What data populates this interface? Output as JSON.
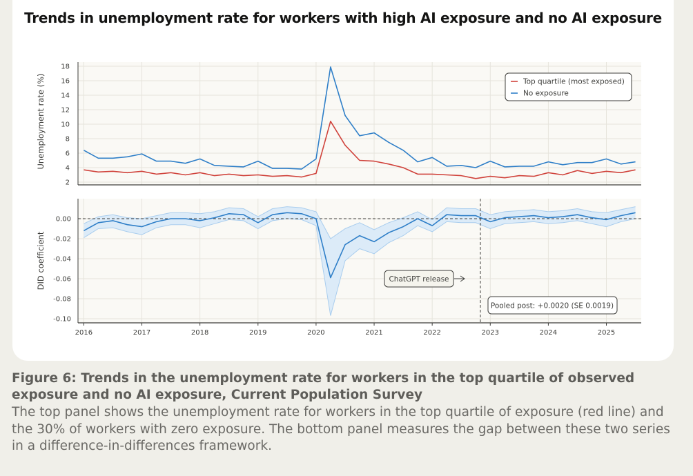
{
  "chart_data": [
    {
      "type": "line",
      "title": "Trends in unemployment rate for workers with high AI exposure and no AI exposure",
      "ylabel": "Unemployment rate (%)",
      "ylim": [
        2,
        18
      ],
      "yticks": [
        2,
        4,
        6,
        8,
        10,
        12,
        14,
        16,
        18
      ],
      "xlim": [
        2015.9,
        2025.6
      ],
      "grid": true,
      "legend": "top-right",
      "series": [
        {
          "name": "Top quartile (most exposed)",
          "color": "#d0433c",
          "x": [
            2016.0,
            2016.25,
            2016.5,
            2016.75,
            2017.0,
            2017.25,
            2017.5,
            2017.75,
            2018.0,
            2018.25,
            2018.5,
            2018.75,
            2019.0,
            2019.25,
            2019.5,
            2019.75,
            2020.0,
            2020.25,
            2020.5,
            2020.75,
            2021.0,
            2021.25,
            2021.5,
            2021.75,
            2022.0,
            2022.25,
            2022.5,
            2022.75,
            2023.0,
            2023.25,
            2023.5,
            2023.75,
            2024.0,
            2024.25,
            2024.5,
            2024.75,
            2025.0,
            2025.25,
            2025.5
          ],
          "y": [
            3.7,
            3.4,
            3.5,
            3.3,
            3.5,
            3.1,
            3.3,
            3.0,
            3.3,
            2.9,
            3.1,
            2.9,
            3.0,
            2.8,
            2.9,
            2.7,
            3.2,
            10.4,
            7.1,
            5.0,
            4.9,
            4.5,
            4.0,
            3.1,
            3.1,
            3.0,
            2.9,
            2.5,
            2.8,
            2.6,
            2.9,
            2.8,
            3.3,
            3.0,
            3.6,
            3.2,
            3.5,
            3.3,
            3.7
          ]
        },
        {
          "name": "No exposure",
          "color": "#2f7fc8",
          "x": [
            2016.0,
            2016.25,
            2016.5,
            2016.75,
            2017.0,
            2017.25,
            2017.5,
            2017.75,
            2018.0,
            2018.25,
            2018.5,
            2018.75,
            2019.0,
            2019.25,
            2019.5,
            2019.75,
            2020.0,
            2020.25,
            2020.5,
            2020.75,
            2021.0,
            2021.25,
            2021.5,
            2021.75,
            2022.0,
            2022.25,
            2022.5,
            2022.75,
            2023.0,
            2023.25,
            2023.5,
            2023.75,
            2024.0,
            2024.25,
            2024.5,
            2024.75,
            2025.0,
            2025.25,
            2025.5
          ],
          "y": [
            6.4,
            5.3,
            5.3,
            5.5,
            5.9,
            4.9,
            4.9,
            4.6,
            5.2,
            4.3,
            4.2,
            4.1,
            4.9,
            3.9,
            3.9,
            3.8,
            5.2,
            17.9,
            11.2,
            8.4,
            8.8,
            7.5,
            6.4,
            4.8,
            5.4,
            4.2,
            4.3,
            4.0,
            4.9,
            4.1,
            4.2,
            4.2,
            4.8,
            4.4,
            4.7,
            4.7,
            5.2,
            4.5,
            4.8
          ]
        }
      ]
    },
    {
      "type": "line",
      "ylabel": "DID coefficient",
      "ylim": [
        -0.1,
        0.01
      ],
      "yticks": [
        0.0,
        -0.02,
        -0.04,
        -0.06,
        -0.08,
        -0.1
      ],
      "ytick_labels": [
        "0.00",
        "-0.02",
        "-0.04",
        "-0.06",
        "-0.08",
        "-0.10"
      ],
      "xlim": [
        2015.9,
        2025.6
      ],
      "xticks": [
        2016,
        2017,
        2018,
        2019,
        2020,
        2021,
        2022,
        2023,
        2024,
        2025
      ],
      "grid": true,
      "reference_line": 0.0,
      "event_line": {
        "x": 2022.83,
        "label": "ChatGPT release"
      },
      "annotation": "Pooled post: +0.0020 (SE 0.0019)",
      "series": [
        {
          "color": "#2f7fc8",
          "band_color": "#dcebf8",
          "x": [
            2016.0,
            2016.25,
            2016.5,
            2016.75,
            2017.0,
            2017.25,
            2017.5,
            2017.75,
            2018.0,
            2018.25,
            2018.5,
            2018.75,
            2019.0,
            2019.25,
            2019.5,
            2019.75,
            2020.0,
            2020.25,
            2020.5,
            2020.75,
            2021.0,
            2021.25,
            2021.5,
            2021.75,
            2022.0,
            2022.25,
            2022.5,
            2022.75,
            2023.0,
            2023.25,
            2023.5,
            2023.75,
            2024.0,
            2024.25,
            2024.5,
            2024.75,
            2025.0,
            2025.25,
            2025.5
          ],
          "y": [
            -0.012,
            -0.004,
            -0.002,
            -0.006,
            -0.008,
            -0.003,
            0.0,
            0.0,
            -0.002,
            0.001,
            0.005,
            0.004,
            -0.004,
            0.004,
            0.006,
            0.005,
            0.0,
            -0.059,
            -0.026,
            -0.017,
            -0.023,
            -0.014,
            -0.008,
            0.0,
            -0.007,
            0.004,
            0.003,
            0.003,
            -0.003,
            0.001,
            0.002,
            0.003,
            0.001,
            0.002,
            0.004,
            0.001,
            -0.001,
            0.003,
            0.006
          ],
          "lower": [
            -0.019,
            -0.01,
            -0.009,
            -0.013,
            -0.016,
            -0.009,
            -0.006,
            -0.006,
            -0.009,
            -0.005,
            -0.001,
            -0.002,
            -0.01,
            -0.002,
            0.0,
            -0.001,
            -0.007,
            -0.097,
            -0.042,
            -0.03,
            -0.035,
            -0.024,
            -0.017,
            -0.007,
            -0.013,
            -0.003,
            -0.004,
            -0.004,
            -0.01,
            -0.005,
            -0.004,
            -0.003,
            -0.005,
            -0.004,
            -0.002,
            -0.005,
            -0.008,
            -0.003,
            0.0
          ],
          "upper": [
            -0.005,
            0.002,
            0.004,
            0.001,
            0.0,
            0.003,
            0.006,
            0.006,
            0.005,
            0.007,
            0.011,
            0.01,
            0.002,
            0.01,
            0.012,
            0.011,
            0.007,
            -0.02,
            -0.01,
            -0.004,
            -0.011,
            -0.004,
            0.001,
            0.007,
            -0.001,
            0.011,
            0.01,
            0.01,
            0.004,
            0.007,
            0.008,
            0.009,
            0.007,
            0.008,
            0.01,
            0.007,
            0.006,
            0.009,
            0.012
          ]
        }
      ]
    }
  ],
  "caption": {
    "title": "Figure 6: Trends in the unemployment rate for workers in the top quartile of observed exposure and no AI exposure, Current Population Survey",
    "body": "The top panel shows the unemployment rate for workers in the top quartile of exposure (red line) and the 30% of workers with zero exposure. The bottom panel measures the gap between these two series in a difference-in-differences framework."
  }
}
